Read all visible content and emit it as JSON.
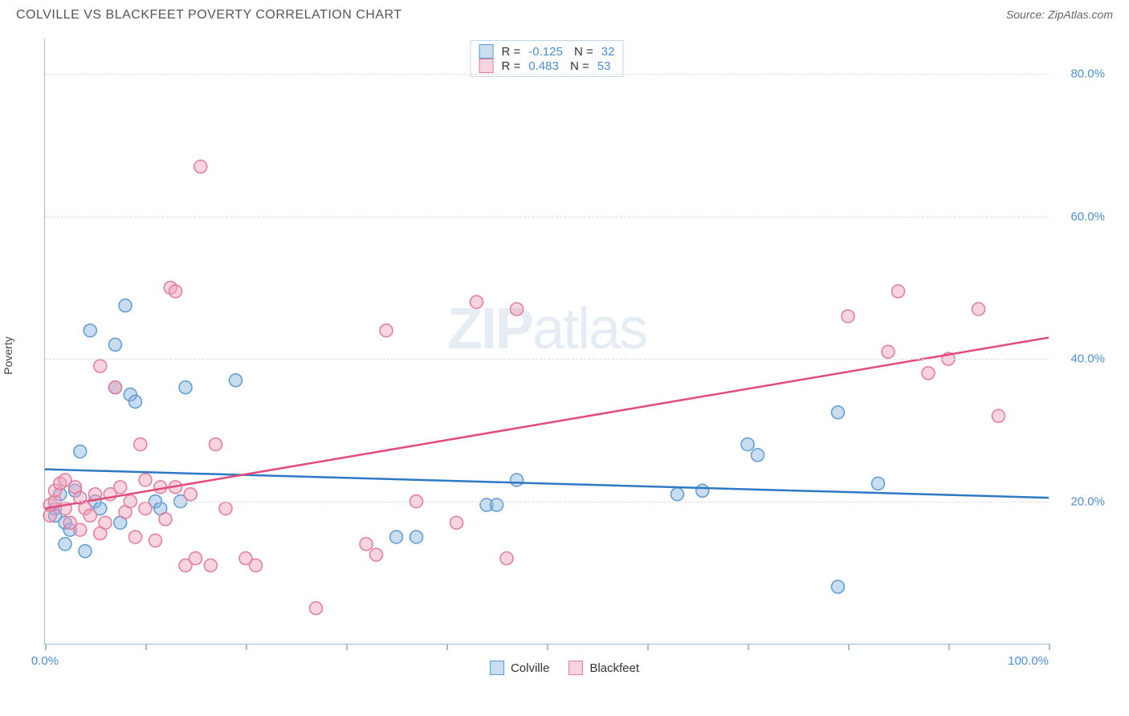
{
  "header": {
    "title": "COLVILLE VS BLACKFEET POVERTY CORRELATION CHART",
    "source": "Source: ZipAtlas.com"
  },
  "watermark": {
    "part1": "ZIP",
    "part2": "atlas"
  },
  "chart": {
    "type": "scatter",
    "ylabel": "Poverty",
    "xlim": [
      0,
      100
    ],
    "ylim": [
      0,
      85
    ],
    "x_ticks": [
      0,
      10,
      20,
      30,
      40,
      50,
      60,
      70,
      80,
      90,
      100
    ],
    "x_tick_labels": {
      "0": "0.0%",
      "100": "100.0%"
    },
    "y_gridlines": [
      20,
      40,
      60,
      80
    ],
    "y_tick_labels": [
      "20.0%",
      "40.0%",
      "60.0%",
      "80.0%"
    ],
    "background_color": "#ffffff",
    "grid_color": "#dddddd",
    "axis_color": "#9dbfde",
    "marker_radius": 8,
    "marker_stroke_width": 1.5,
    "line_width": 2.5,
    "series": [
      {
        "name": "Colville",
        "fill_color": "rgba(135, 180, 225, 0.45)",
        "stroke_color": "#5b9bd5",
        "line_color": "#2e78c4",
        "r": "-0.125",
        "n": "32",
        "regression": {
          "x1": 0,
          "y1": 24.5,
          "x2": 100,
          "y2": 20.5
        },
        "points": [
          [
            1,
            18
          ],
          [
            1,
            19
          ],
          [
            1.5,
            21
          ],
          [
            2,
            14
          ],
          [
            2,
            17
          ],
          [
            2.5,
            16
          ],
          [
            3,
            21.5
          ],
          [
            3.5,
            27
          ],
          [
            4,
            13
          ],
          [
            4.5,
            44
          ],
          [
            5,
            20
          ],
          [
            5.5,
            19
          ],
          [
            7,
            36
          ],
          [
            7,
            42
          ],
          [
            7.5,
            17
          ],
          [
            8,
            47.5
          ],
          [
            8.5,
            35
          ],
          [
            9,
            34
          ],
          [
            11,
            20
          ],
          [
            11.5,
            19
          ],
          [
            13.5,
            20
          ],
          [
            14,
            36
          ],
          [
            19,
            37
          ],
          [
            35,
            15
          ],
          [
            37,
            15
          ],
          [
            44,
            19.5
          ],
          [
            45,
            19.5
          ],
          [
            47,
            23
          ],
          [
            63,
            21
          ],
          [
            65.5,
            21.5
          ],
          [
            70,
            28
          ],
          [
            71,
            26.5
          ],
          [
            79,
            32.5
          ],
          [
            83,
            22.5
          ],
          [
            79,
            8
          ]
        ]
      },
      {
        "name": "Blackfeet",
        "fill_color": "rgba(240, 160, 185, 0.45)",
        "stroke_color": "#e57a9b",
        "line_color": "#e34b7a",
        "r": "0.483",
        "n": "53",
        "regression": {
          "x1": 0,
          "y1": 19,
          "x2": 100,
          "y2": 43
        },
        "points": [
          [
            0.5,
            18
          ],
          [
            0.5,
            19.5
          ],
          [
            1,
            20
          ],
          [
            1,
            21.5
          ],
          [
            1.5,
            22.5
          ],
          [
            2,
            19
          ],
          [
            2,
            23
          ],
          [
            2.5,
            17
          ],
          [
            3,
            22
          ],
          [
            3.5,
            16
          ],
          [
            3.5,
            20.5
          ],
          [
            4,
            19
          ],
          [
            4.5,
            18
          ],
          [
            5,
            21
          ],
          [
            5.5,
            15.5
          ],
          [
            5.5,
            39
          ],
          [
            6,
            17
          ],
          [
            6.5,
            21
          ],
          [
            7,
            36
          ],
          [
            7.5,
            22
          ],
          [
            8,
            18.5
          ],
          [
            8.5,
            20
          ],
          [
            9,
            15
          ],
          [
            9.5,
            28
          ],
          [
            10,
            19
          ],
          [
            10,
            23
          ],
          [
            11,
            14.5
          ],
          [
            11.5,
            22
          ],
          [
            12,
            17.5
          ],
          [
            12.5,
            50
          ],
          [
            13,
            49.5
          ],
          [
            13,
            22
          ],
          [
            14,
            11
          ],
          [
            14.5,
            21
          ],
          [
            15,
            12
          ],
          [
            15.5,
            67
          ],
          [
            16.5,
            11
          ],
          [
            17,
            28
          ],
          [
            18,
            19
          ],
          [
            20,
            12
          ],
          [
            21,
            11
          ],
          [
            27,
            5
          ],
          [
            32,
            14
          ],
          [
            33,
            12.5
          ],
          [
            34,
            44
          ],
          [
            37,
            20
          ],
          [
            41,
            17
          ],
          [
            43,
            48
          ],
          [
            46,
            12
          ],
          [
            47,
            47
          ],
          [
            80,
            46
          ],
          [
            84,
            41
          ],
          [
            85,
            49.5
          ],
          [
            88,
            38
          ],
          [
            90,
            40
          ],
          [
            93,
            47
          ],
          [
            95,
            32
          ]
        ]
      }
    ]
  },
  "legend": {
    "series": [
      {
        "label": "Colville",
        "fill": "rgba(135,180,225,0.45)",
        "stroke": "#5b9bd5"
      },
      {
        "label": "Blackfeet",
        "fill": "rgba(240,160,185,0.45)",
        "stroke": "#e57a9b"
      }
    ]
  }
}
